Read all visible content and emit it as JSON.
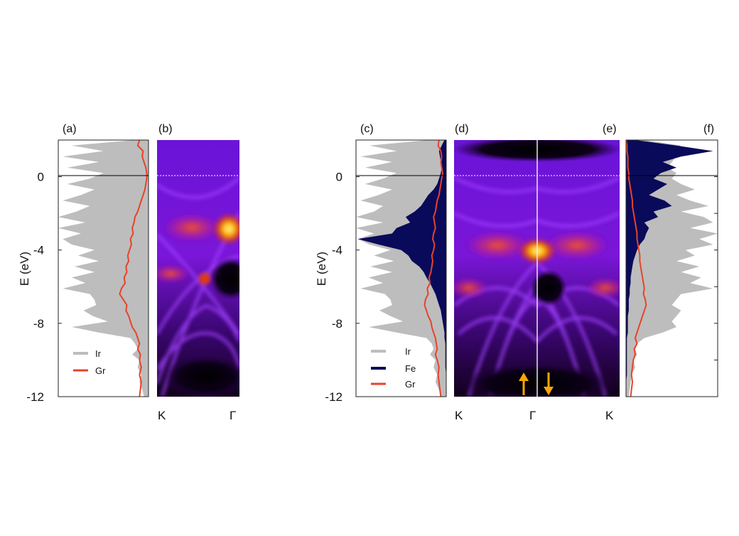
{
  "chart_data": {
    "type": "figure",
    "y_axis": {
      "label": "E (eV)",
      "ylim": [
        -12,
        2
      ],
      "ticks": [
        0,
        -4,
        -8,
        -12
      ],
      "tick_labels": [
        "0",
        "-4",
        "-8",
        "-12"
      ]
    },
    "panels": [
      {
        "label": "(a)",
        "type": "area",
        "legend": [
          "Ir",
          "Gr"
        ],
        "series": [
          {
            "name": "Ir",
            "color": "#bdbdbd",
            "fill": true,
            "E": [
              2,
              1.7,
              1.4,
              1.1,
              0.8,
              0.5,
              0.2,
              -0.1,
              -0.4,
              -0.7,
              -1.0,
              -1.3,
              -1.6,
              -1.9,
              -2.2,
              -2.5,
              -2.8,
              -3.1,
              -3.4,
              -3.7,
              -4.0,
              -4.3,
              -4.6,
              -4.9,
              -5.2,
              -5.5,
              -5.8,
              -6.1,
              -6.4,
              -6.7,
              -7.0,
              -7.3,
              -7.6,
              -7.9,
              -8.2,
              -8.5,
              -8.8,
              -9.1,
              -9.4,
              -9.7,
              -10.0,
              -10.4,
              -10.8,
              -11.2,
              -11.6,
              -12
            ],
            "dos": [
              0.15,
              0.85,
              0.5,
              0.95,
              0.55,
              0.9,
              0.5,
              0.65,
              0.9,
              0.6,
              0.75,
              0.95,
              0.65,
              0.8,
              1.0,
              0.7,
              1.0,
              0.75,
              0.95,
              0.85,
              0.6,
              0.78,
              0.55,
              0.82,
              0.6,
              0.85,
              0.7,
              0.95,
              0.65,
              0.6,
              0.58,
              0.72,
              0.62,
              0.45,
              0.85,
              0.55,
              0.2,
              0.15,
              0.12,
              0.18,
              0.1,
              0.12,
              0.08,
              0.1,
              0.07,
              0.05
            ]
          },
          {
            "name": "Gr",
            "color": "#e8422a",
            "fill": false,
            "E": [
              2,
              1.7,
              1.4,
              1.1,
              0.8,
              0.5,
              0.2,
              -0.1,
              -0.4,
              -0.7,
              -1.0,
              -1.3,
              -1.6,
              -1.9,
              -2.2,
              -2.5,
              -2.8,
              -3.1,
              -3.4,
              -3.7,
              -4.0,
              -4.3,
              -4.6,
              -4.9,
              -5.2,
              -5.5,
              -5.8,
              -6.1,
              -6.4,
              -6.7,
              -7.0,
              -7.3,
              -7.6,
              -7.9,
              -8.2,
              -8.5,
              -8.8,
              -9.1,
              -9.4,
              -9.7,
              -10.0,
              -10.4,
              -10.8,
              -11.2,
              -11.6,
              -12
            ],
            "dos": [
              0.1,
              0.12,
              0.06,
              0.07,
              0.05,
              0.03,
              0.02,
              0.02,
              0.03,
              0.04,
              0.06,
              0.08,
              0.1,
              0.12,
              0.15,
              0.16,
              0.18,
              0.17,
              0.2,
              0.19,
              0.21,
              0.23,
              0.22,
              0.25,
              0.24,
              0.27,
              0.26,
              0.3,
              0.32,
              0.28,
              0.24,
              0.25,
              0.22,
              0.2,
              0.18,
              0.14,
              0.12,
              0.1,
              0.12,
              0.09,
              0.1,
              0.08,
              0.1,
              0.08,
              0.09,
              0.1
            ]
          }
        ]
      },
      {
        "label": "(b)",
        "type": "heatmap",
        "x_tick_labels": [
          "K",
          "Γ"
        ],
        "fermi_level": 0
      },
      {
        "label": "(c)",
        "type": "area",
        "legend": [
          "Ir",
          "Fe",
          "Gr"
        ],
        "series": [
          {
            "name": "Ir",
            "color": "#bdbdbd",
            "fill": true,
            "E": [
              2,
              1.7,
              1.4,
              1.1,
              0.8,
              0.5,
              0.2,
              -0.1,
              -0.4,
              -0.7,
              -1.0,
              -1.3,
              -1.6,
              -1.9,
              -2.2,
              -2.5,
              -2.8,
              -3.1,
              -3.4,
              -3.7,
              -4.0,
              -4.3,
              -4.6,
              -4.9,
              -5.2,
              -5.5,
              -5.8,
              -6.1,
              -6.4,
              -6.7,
              -7.0,
              -7.3,
              -7.6,
              -7.9,
              -8.2,
              -8.5,
              -8.8,
              -9.1,
              -9.4,
              -9.7,
              -10.0,
              -10.4,
              -10.8,
              -11.2,
              -11.6,
              -12
            ],
            "dos": [
              0.2,
              0.85,
              0.55,
              0.95,
              0.6,
              0.9,
              0.55,
              0.7,
              0.9,
              0.6,
              0.75,
              0.95,
              0.7,
              0.8,
              1.0,
              0.7,
              1.0,
              0.8,
              0.98,
              0.85,
              0.62,
              0.8,
              0.58,
              0.84,
              0.6,
              0.86,
              0.7,
              0.95,
              0.68,
              0.62,
              0.6,
              0.74,
              0.62,
              0.48,
              0.86,
              0.55,
              0.22,
              0.16,
              0.14,
              0.18,
              0.12,
              0.14,
              0.1,
              0.12,
              0.08,
              0.06
            ]
          },
          {
            "name": "Fe",
            "color": "#0a0a5a",
            "fill": true,
            "E": [
              2,
              1.7,
              1.4,
              1.1,
              0.8,
              0.5,
              0.2,
              -0.1,
              -0.4,
              -0.7,
              -1.0,
              -1.3,
              -1.6,
              -1.9,
              -2.2,
              -2.5,
              -2.8,
              -3.1,
              -3.4,
              -3.7,
              -4.0,
              -4.3,
              -4.6,
              -4.9,
              -5.2,
              -5.5,
              -5.8,
              -6.1,
              -6.4,
              -6.7,
              -7.0,
              -7.3,
              -7.6,
              -7.9,
              -8.2,
              -8.5,
              -8.8,
              -9.1,
              -9.4,
              -9.7,
              -10.0,
              -10.4,
              -10.8,
              -11.2,
              -11.6,
              -12
            ],
            "dos": [
              0.02,
              0.05,
              0.08,
              0.07,
              0.06,
              0.05,
              0.06,
              0.08,
              0.1,
              0.14,
              0.2,
              0.24,
              0.28,
              0.35,
              0.45,
              0.4,
              0.55,
              0.6,
              0.98,
              0.75,
              0.5,
              0.42,
              0.38,
              0.3,
              0.25,
              0.22,
              0.18,
              0.15,
              0.12,
              0.1,
              0.08,
              0.06,
              0.05,
              0.04,
              0.03,
              0.02,
              0.02,
              0.01,
              0.01,
              0.01,
              0.01,
              0.01,
              0.0,
              0.0,
              0.0,
              0.0
            ]
          },
          {
            "name": "Gr",
            "color": "#e8422a",
            "fill": false,
            "E": [
              2,
              1.7,
              1.4,
              1.1,
              0.8,
              0.5,
              0.2,
              -0.1,
              -0.4,
              -0.7,
              -1.0,
              -1.3,
              -1.6,
              -1.9,
              -2.2,
              -2.5,
              -2.8,
              -3.1,
              -3.4,
              -3.7,
              -4.0,
              -4.3,
              -4.6,
              -4.9,
              -5.2,
              -5.5,
              -5.8,
              -6.1,
              -6.4,
              -6.7,
              -7.0,
              -7.3,
              -7.6,
              -7.9,
              -8.2,
              -8.5,
              -8.8,
              -9.1,
              -9.4,
              -9.7,
              -10.0,
              -10.4,
              -10.8,
              -11.2,
              -11.6,
              -12
            ],
            "dos": [
              0.08,
              0.09,
              0.06,
              0.05,
              0.06,
              0.05,
              0.04,
              0.05,
              0.06,
              0.07,
              0.08,
              0.1,
              0.11,
              0.12,
              0.14,
              0.13,
              0.12,
              0.14,
              0.15,
              0.13,
              0.14,
              0.16,
              0.15,
              0.16,
              0.17,
              0.19,
              0.18,
              0.21,
              0.2,
              0.23,
              0.24,
              0.22,
              0.2,
              0.17,
              0.16,
              0.14,
              0.12,
              0.11,
              0.1,
              0.12,
              0.1,
              0.08,
              0.09,
              0.08,
              0.07,
              0.06
            ]
          }
        ]
      },
      {
        "label": "(d)",
        "type": "heatmap",
        "x_tick_labels": [
          "K",
          "Γ"
        ],
        "spin": "up",
        "fermi_level": 0
      },
      {
        "label": "(e)",
        "type": "heatmap",
        "x_tick_labels": [
          "Γ",
          "K"
        ],
        "spin": "down",
        "fermi_level": 0
      },
      {
        "label": "(f)",
        "type": "area",
        "series": [
          {
            "name": "Ir",
            "color": "#bdbdbd",
            "fill": true,
            "E": [
              2,
              1.7,
              1.4,
              1.1,
              0.8,
              0.5,
              0.2,
              -0.1,
              -0.4,
              -0.7,
              -1.0,
              -1.3,
              -1.6,
              -1.9,
              -2.2,
              -2.5,
              -2.8,
              -3.1,
              -3.4,
              -3.7,
              -4.0,
              -4.3,
              -4.6,
              -4.9,
              -5.2,
              -5.5,
              -5.8,
              -6.1,
              -6.4,
              -6.7,
              -7.0,
              -7.3,
              -7.6,
              -7.9,
              -8.2,
              -8.5,
              -8.8,
              -9.1,
              -9.4,
              -9.7,
              -10.0,
              -10.4,
              -10.8,
              -11.2,
              -11.6,
              -12
            ],
            "dos": [
              0.2,
              0.6,
              0.5,
              0.55,
              0.5,
              0.45,
              0.55,
              0.5,
              0.6,
              0.75,
              0.55,
              0.7,
              0.9,
              0.6,
              0.85,
              0.95,
              0.7,
              1.0,
              0.8,
              0.95,
              0.65,
              0.75,
              0.55,
              0.8,
              0.6,
              0.82,
              0.7,
              0.95,
              0.6,
              0.55,
              0.5,
              0.6,
              0.55,
              0.5,
              0.55,
              0.4,
              0.2,
              0.12,
              0.1,
              0.12,
              0.08,
              0.1,
              0.06,
              0.05,
              0.04,
              0.03
            ]
          },
          {
            "name": "Fe",
            "color": "#0a0a5a",
            "fill": true,
            "E": [
              2,
              1.7,
              1.4,
              1.1,
              0.8,
              0.5,
              0.2,
              -0.1,
              -0.4,
              -0.7,
              -1.0,
              -1.3,
              -1.6,
              -1.9,
              -2.2,
              -2.5,
              -2.8,
              -3.1,
              -3.4,
              -3.7,
              -4.0,
              -4.3,
              -4.6,
              -4.9,
              -5.2,
              -5.5,
              -5.8,
              -6.1,
              -6.4,
              -6.7,
              -7.0,
              -7.3,
              -7.6,
              -7.9,
              -8.2,
              -8.5,
              -8.8,
              -9.1,
              -9.4,
              -9.7,
              -10.0,
              -10.4,
              -10.8,
              -11.2,
              -11.6,
              -12
            ],
            "dos": [
              0.1,
              0.55,
              0.95,
              0.6,
              0.4,
              0.55,
              0.38,
              0.3,
              0.45,
              0.35,
              0.25,
              0.42,
              0.5,
              0.3,
              0.35,
              0.2,
              0.25,
              0.22,
              0.2,
              0.15,
              0.12,
              0.1,
              0.08,
              0.07,
              0.06,
              0.05,
              0.05,
              0.04,
              0.04,
              0.03,
              0.03,
              0.03,
              0.02,
              0.02,
              0.02,
              0.02,
              0.01,
              0.01,
              0.01,
              0.01,
              0.01,
              0.01,
              0.01,
              0.0,
              0.0,
              0.0
            ]
          },
          {
            "name": "Gr",
            "color": "#e8422a",
            "fill": false,
            "E": [
              2,
              1.7,
              1.4,
              1.1,
              0.8,
              0.5,
              0.2,
              -0.1,
              -0.4,
              -0.7,
              -1.0,
              -1.3,
              -1.6,
              -1.9,
              -2.2,
              -2.5,
              -2.8,
              -3.1,
              -3.4,
              -3.7,
              -4.0,
              -4.3,
              -4.6,
              -4.9,
              -5.2,
              -5.5,
              -5.8,
              -6.1,
              -6.4,
              -6.7,
              -7.0,
              -7.3,
              -7.6,
              -7.9,
              -8.2,
              -8.5,
              -8.8,
              -9.1,
              -9.4,
              -9.7,
              -10.0,
              -10.4,
              -10.8,
              -11.2,
              -11.6,
              -12
            ],
            "dos": [
              0.0,
              0.01,
              0.01,
              0.02,
              0.02,
              0.02,
              0.03,
              0.03,
              0.04,
              0.05,
              0.06,
              0.07,
              0.07,
              0.08,
              0.09,
              0.1,
              0.11,
              0.12,
              0.12,
              0.13,
              0.14,
              0.15,
              0.15,
              0.16,
              0.17,
              0.18,
              0.19,
              0.2,
              0.19,
              0.21,
              0.22,
              0.2,
              0.18,
              0.16,
              0.14,
              0.12,
              0.1,
              0.12,
              0.09,
              0.1,
              0.08,
              0.07,
              0.06,
              0.07,
              0.06,
              0.05
            ]
          }
        ]
      }
    ],
    "colors": {
      "Ir": "#bdbdbd",
      "Fe": "#0a0a5a",
      "Gr": "#e8422a",
      "arrow": "#f5a800",
      "fermi_line": "#ffffff"
    }
  }
}
